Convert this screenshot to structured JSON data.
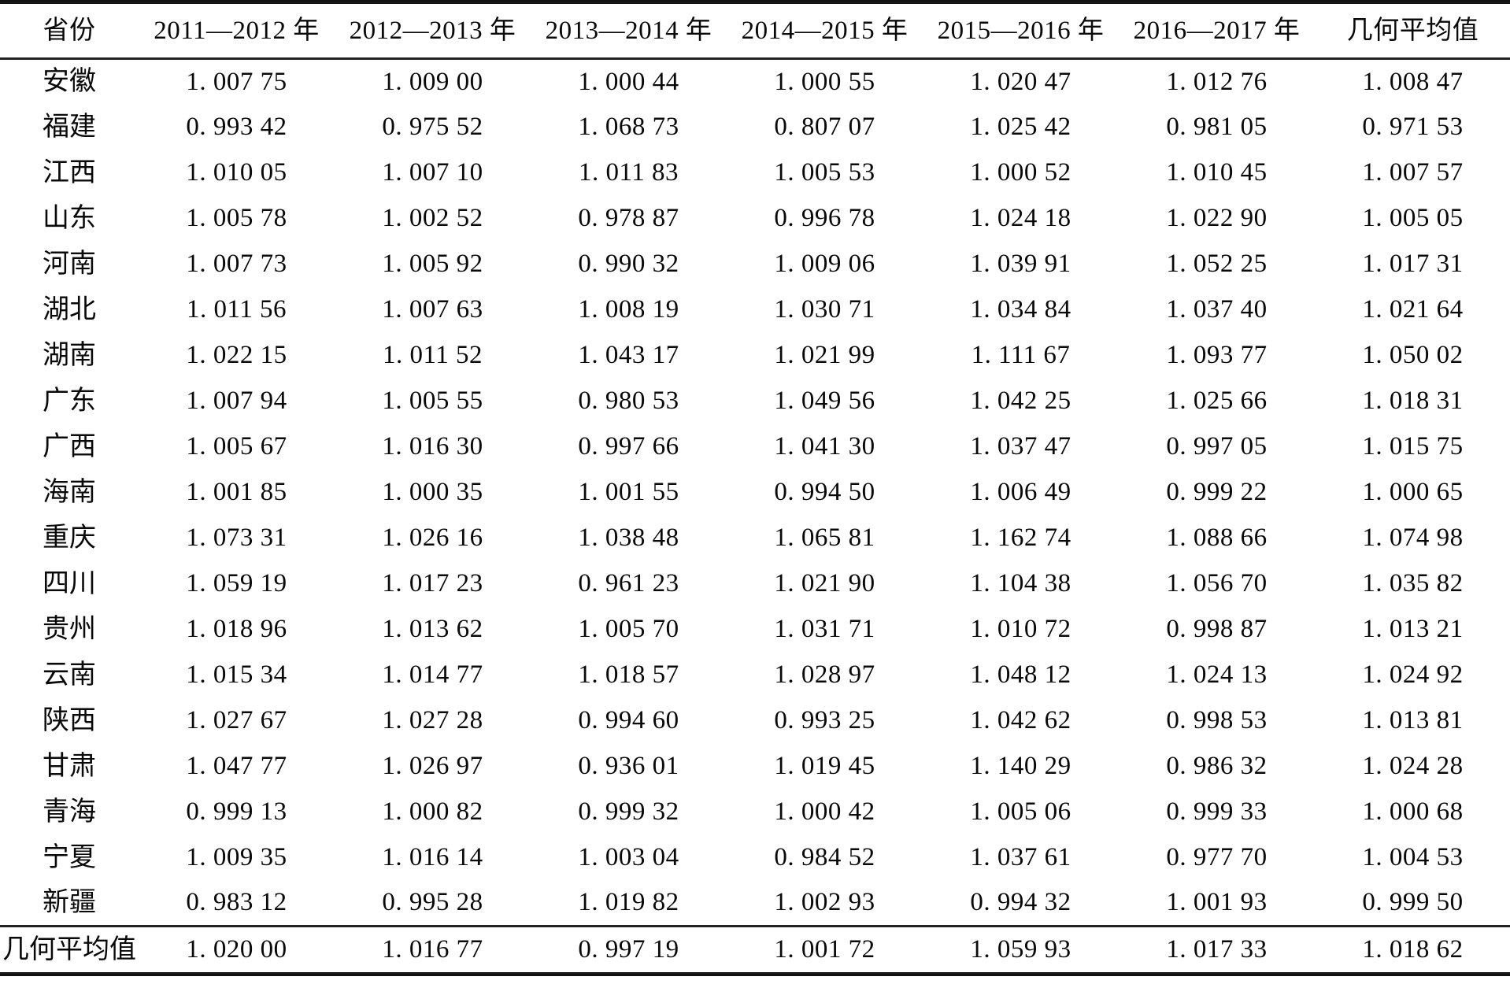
{
  "table": {
    "columns": [
      "省份",
      "2011—2012 年",
      "2012—2013 年",
      "2013—2014 年",
      "2014—2015 年",
      "2015—2016 年",
      "2016—2017 年",
      "几何平均值"
    ],
    "rows": [
      {
        "province": "安徽",
        "values": [
          "1. 007 75",
          "1. 009 00",
          "1. 000 44",
          "1. 000 55",
          "1. 020 47",
          "1. 012 76",
          "1. 008 47"
        ]
      },
      {
        "province": "福建",
        "values": [
          "0. 993 42",
          "0. 975 52",
          "1. 068 73",
          "0. 807 07",
          "1. 025 42",
          "0. 981 05",
          "0. 971 53"
        ]
      },
      {
        "province": "江西",
        "values": [
          "1. 010 05",
          "1. 007 10",
          "1. 011 83",
          "1. 005 53",
          "1. 000 52",
          "1. 010 45",
          "1. 007 57"
        ]
      },
      {
        "province": "山东",
        "values": [
          "1. 005 78",
          "1. 002 52",
          "0. 978 87",
          "0. 996 78",
          "1. 024 18",
          "1. 022 90",
          "1. 005 05"
        ]
      },
      {
        "province": "河南",
        "values": [
          "1. 007 73",
          "1. 005 92",
          "0. 990 32",
          "1. 009 06",
          "1. 039 91",
          "1. 052 25",
          "1. 017 31"
        ]
      },
      {
        "province": "湖北",
        "values": [
          "1. 011 56",
          "1. 007 63",
          "1. 008 19",
          "1. 030 71",
          "1. 034 84",
          "1. 037 40",
          "1. 021 64"
        ]
      },
      {
        "province": "湖南",
        "values": [
          "1. 022 15",
          "1. 011 52",
          "1. 043 17",
          "1. 021 99",
          "1. 111 67",
          "1. 093 77",
          "1. 050 02"
        ]
      },
      {
        "province": "广东",
        "values": [
          "1. 007 94",
          "1. 005 55",
          "0. 980 53",
          "1. 049 56",
          "1. 042 25",
          "1. 025 66",
          "1. 018 31"
        ]
      },
      {
        "province": "广西",
        "values": [
          "1. 005 67",
          "1. 016 30",
          "0. 997 66",
          "1. 041 30",
          "1. 037 47",
          "0. 997 05",
          "1. 015 75"
        ]
      },
      {
        "province": "海南",
        "values": [
          "1. 001 85",
          "1. 000 35",
          "1. 001 55",
          "0. 994 50",
          "1. 006 49",
          "0. 999 22",
          "1. 000 65"
        ]
      },
      {
        "province": "重庆",
        "values": [
          "1. 073 31",
          "1. 026 16",
          "1. 038 48",
          "1. 065 81",
          "1. 162 74",
          "1. 088 66",
          "1. 074 98"
        ]
      },
      {
        "province": "四川",
        "values": [
          "1. 059 19",
          "1. 017 23",
          "0. 961 23",
          "1. 021 90",
          "1. 104 38",
          "1. 056 70",
          "1. 035 82"
        ]
      },
      {
        "province": "贵州",
        "values": [
          "1. 018 96",
          "1. 013 62",
          "1. 005 70",
          "1. 031 71",
          "1. 010 72",
          "0. 998 87",
          "1. 013 21"
        ]
      },
      {
        "province": "云南",
        "values": [
          "1. 015 34",
          "1. 014 77",
          "1. 018 57",
          "1. 028 97",
          "1. 048 12",
          "1. 024 13",
          "1. 024 92"
        ]
      },
      {
        "province": "陕西",
        "values": [
          "1. 027 67",
          "1. 027 28",
          "0. 994 60",
          "0. 993 25",
          "1. 042 62",
          "0. 998 53",
          "1. 013 81"
        ]
      },
      {
        "province": "甘肃",
        "values": [
          "1. 047 77",
          "1. 026 97",
          "0. 936 01",
          "1. 019 45",
          "1. 140 29",
          "0. 986 32",
          "1. 024 28"
        ]
      },
      {
        "province": "青海",
        "values": [
          "0. 999 13",
          "1. 000 82",
          "0. 999 32",
          "1. 000 42",
          "1. 005 06",
          "0. 999 33",
          "1. 000 68"
        ]
      },
      {
        "province": "宁夏",
        "values": [
          "1. 009 35",
          "1. 016 14",
          "1. 003 04",
          "0. 984 52",
          "1. 037 61",
          "0. 977 70",
          "1. 004 53"
        ]
      },
      {
        "province": "新疆",
        "values": [
          "0. 983 12",
          "0. 995 28",
          "1. 019 82",
          "1. 002 93",
          "0. 994 32",
          "1. 001 93",
          "0. 999 50"
        ]
      }
    ],
    "footer": {
      "label": "几何平均值",
      "values": [
        "1. 020 00",
        "1. 016 77",
        "0. 997 19",
        "1. 001 72",
        "1. 059 93",
        "1. 017 33",
        "1. 018 62"
      ]
    }
  },
  "colors": {
    "text": "#090909",
    "rule": "#141414",
    "background": "#ffffff"
  }
}
